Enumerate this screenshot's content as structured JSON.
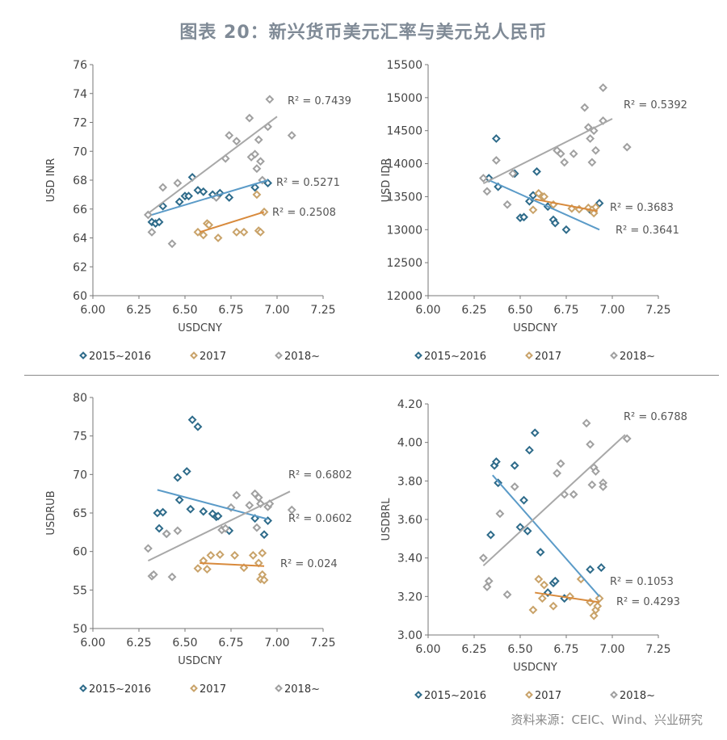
{
  "title": "图表 20：新兴货币美元汇率与美元兑人民币",
  "source": "资料来源：CEIC、Wind、兴业研究",
  "colors": {
    "s2015": "#2e6b8a",
    "s2017": "#c9a36a",
    "s2018": "#a0a0a0",
    "fit2015": "#5b9bc8",
    "fit2017": "#d88a3c",
    "fit2018": "#a8a8a8",
    "axis": "#777777"
  },
  "chart_data": [
    {
      "type": "scatter",
      "xlabel": "USDCNY",
      "ylabel": "USD INR",
      "xlim": [
        6.0,
        7.25
      ],
      "ylim": [
        60,
        76
      ],
      "xticks": [
        "6.00",
        "6.25",
        "6.50",
        "6.75",
        "7.00",
        "7.25"
      ],
      "yticks": [
        "60",
        "62",
        "64",
        "66",
        "68",
        "70",
        "72",
        "74",
        "76"
      ],
      "series": [
        {
          "name": "2015~2016",
          "points": [
            [
              6.32,
              65.1
            ],
            [
              6.34,
              65.0
            ],
            [
              6.36,
              65.1
            ],
            [
              6.38,
              66.2
            ],
            [
              6.47,
              66.5
            ],
            [
              6.5,
              66.9
            ],
            [
              6.52,
              66.9
            ],
            [
              6.54,
              68.2
            ],
            [
              6.57,
              67.3
            ],
            [
              6.6,
              67.2
            ],
            [
              6.65,
              67.0
            ],
            [
              6.69,
              67.1
            ],
            [
              6.74,
              66.8
            ],
            [
              6.88,
              67.5
            ],
            [
              6.95,
              67.8
            ]
          ],
          "fit": [
            [
              6.32,
              65.6
            ],
            [
              6.95,
              68.0
            ]
          ],
          "r2": "R² = 0.5271"
        },
        {
          "name": "2017",
          "points": [
            [
              6.57,
              64.4
            ],
            [
              6.6,
              64.2
            ],
            [
              6.62,
              65.0
            ],
            [
              6.63,
              64.9
            ],
            [
              6.68,
              64.0
            ],
            [
              6.78,
              64.4
            ],
            [
              6.82,
              64.4
            ],
            [
              6.9,
              64.5
            ],
            [
              6.91,
              64.4
            ],
            [
              6.93,
              65.8
            ],
            [
              6.89,
              67.0
            ]
          ],
          "fit": [
            [
              6.58,
              64.4
            ],
            [
              6.93,
              65.8
            ]
          ],
          "r2": "R² = 0.2508"
        },
        {
          "name": "2018~",
          "points": [
            [
              6.3,
              65.6
            ],
            [
              6.32,
              64.4
            ],
            [
              6.38,
              67.5
            ],
            [
              6.43,
              63.6
            ],
            [
              6.46,
              67.8
            ],
            [
              6.67,
              66.8
            ],
            [
              6.72,
              69.5
            ],
            [
              6.74,
              71.1
            ],
            [
              6.78,
              70.7
            ],
            [
              6.85,
              72.3
            ],
            [
              6.86,
              69.6
            ],
            [
              6.88,
              69.8
            ],
            [
              6.89,
              68.8
            ],
            [
              6.9,
              70.8
            ],
            [
              6.91,
              69.3
            ],
            [
              6.92,
              68.0
            ],
            [
              6.95,
              71.7
            ],
            [
              6.96,
              73.6
            ],
            [
              7.08,
              71.1
            ]
          ],
          "fit": [
            [
              6.3,
              65.7
            ],
            [
              7.0,
              72.4
            ]
          ],
          "r2": "R² = 0.7439"
        }
      ],
      "legend": [
        "2015~2016",
        "2017",
        "2018~"
      ]
    },
    {
      "type": "scatter",
      "xlabel": "USDCNY",
      "ylabel": "USD IDR",
      "xlim": [
        6.0,
        7.25
      ],
      "ylim": [
        12000,
        15500
      ],
      "xticks": [
        "6.00",
        "6.25",
        "6.50",
        "6.75",
        "7.00",
        "7.25"
      ],
      "yticks": [
        "12000",
        "12500",
        "13000",
        "13500",
        "14000",
        "14500",
        "15000",
        "15500"
      ],
      "series": [
        {
          "name": "2015~2016",
          "points": [
            [
              6.33,
              13780
            ],
            [
              6.37,
              14380
            ],
            [
              6.38,
              13650
            ],
            [
              6.47,
              13850
            ],
            [
              6.5,
              13180
            ],
            [
              6.52,
              13190
            ],
            [
              6.55,
              13430
            ],
            [
              6.57,
              13520
            ],
            [
              6.59,
              13880
            ],
            [
              6.65,
              13350
            ],
            [
              6.68,
              13150
            ],
            [
              6.69,
              13100
            ],
            [
              6.75,
              13000
            ],
            [
              6.88,
              13300
            ],
            [
              6.93,
              13400
            ]
          ],
          "fit": [
            [
              6.33,
              13750
            ],
            [
              6.93,
              13000
            ]
          ],
          "r2": "R² = 0.3641"
        },
        {
          "name": "2017",
          "points": [
            [
              6.57,
              13300
            ],
            [
              6.6,
              13550
            ],
            [
              6.62,
              13500
            ],
            [
              6.63,
              13500
            ],
            [
              6.68,
              13380
            ],
            [
              6.78,
              13320
            ],
            [
              6.82,
              13310
            ],
            [
              6.87,
              13330
            ],
            [
              6.89,
              13300
            ],
            [
              6.9,
              13250
            ],
            [
              6.91,
              13340
            ]
          ],
          "fit": [
            [
              6.58,
              13460
            ],
            [
              6.92,
              13280
            ]
          ],
          "r2": "R² = 0.3683"
        },
        {
          "name": "2018~",
          "points": [
            [
              6.3,
              13780
            ],
            [
              6.32,
              13580
            ],
            [
              6.37,
              14050
            ],
            [
              6.43,
              13380
            ],
            [
              6.46,
              13850
            ],
            [
              6.7,
              14200
            ],
            [
              6.72,
              14150
            ],
            [
              6.74,
              14020
            ],
            [
              6.79,
              14150
            ],
            [
              6.85,
              14850
            ],
            [
              6.87,
              14550
            ],
            [
              6.88,
              14380
            ],
            [
              6.89,
              14020
            ],
            [
              6.9,
              14500
            ],
            [
              6.91,
              14200
            ],
            [
              6.95,
              14650
            ],
            [
              6.95,
              15150
            ],
            [
              7.08,
              14250
            ]
          ],
          "fit": [
            [
              6.3,
              13700
            ],
            [
              7.0,
              14680
            ]
          ],
          "r2": "R² = 0.5392"
        }
      ],
      "legend": [
        "2015~2016",
        "2017",
        "2018~"
      ]
    },
    {
      "type": "scatter",
      "xlabel": "USDCNY",
      "ylabel": "USDRUB",
      "xlim": [
        6.0,
        7.25
      ],
      "ylim": [
        50,
        80
      ],
      "xticks": [
        "6.00",
        "6.25",
        "6.50",
        "6.75",
        "7.00",
        "7.25"
      ],
      "yticks": [
        "50",
        "55",
        "60",
        "65",
        "70",
        "75",
        "80"
      ],
      "series": [
        {
          "name": "2015~2016",
          "points": [
            [
              6.35,
              65.0
            ],
            [
              6.36,
              63.0
            ],
            [
              6.38,
              65.1
            ],
            [
              6.4,
              62.3
            ],
            [
              6.46,
              69.6
            ],
            [
              6.47,
              66.7
            ],
            [
              6.51,
              70.4
            ],
            [
              6.53,
              65.5
            ],
            [
              6.54,
              77.1
            ],
            [
              6.57,
              76.2
            ],
            [
              6.6,
              65.2
            ],
            [
              6.65,
              64.9
            ],
            [
              6.67,
              64.5
            ],
            [
              6.68,
              64.6
            ],
            [
              6.74,
              62.7
            ],
            [
              6.88,
              64.3
            ],
            [
              6.93,
              62.2
            ],
            [
              6.95,
              64.0
            ]
          ],
          "fit": [
            [
              6.35,
              68.0
            ],
            [
              6.95,
              64.2
            ]
          ],
          "r2": "R² = 0.0602"
        },
        {
          "name": "2017",
          "points": [
            [
              6.57,
              57.8
            ],
            [
              6.6,
              58.8
            ],
            [
              6.62,
              57.7
            ],
            [
              6.64,
              59.5
            ],
            [
              6.69,
              59.6
            ],
            [
              6.77,
              59.5
            ],
            [
              6.82,
              57.9
            ],
            [
              6.87,
              59.5
            ],
            [
              6.9,
              58.5
            ],
            [
              6.91,
              56.4
            ],
            [
              6.92,
              57.0
            ],
            [
              6.93,
              56.3
            ],
            [
              6.92,
              59.8
            ]
          ],
          "fit": [
            [
              6.58,
              58.5
            ],
            [
              6.93,
              58.1
            ]
          ],
          "r2": "R² = 0.024"
        },
        {
          "name": "2018~",
          "points": [
            [
              6.3,
              60.4
            ],
            [
              6.32,
              56.8
            ],
            [
              6.33,
              57.0
            ],
            [
              6.4,
              62.3
            ],
            [
              6.43,
              56.7
            ],
            [
              6.46,
              62.7
            ],
            [
              6.7,
              62.8
            ],
            [
              6.72,
              63.0
            ],
            [
              6.75,
              65.7
            ],
            [
              6.78,
              67.3
            ],
            [
              6.85,
              66.0
            ],
            [
              6.88,
              67.5
            ],
            [
              6.89,
              63.1
            ],
            [
              6.9,
              67.0
            ],
            [
              6.91,
              66.2
            ],
            [
              6.95,
              65.8
            ],
            [
              6.96,
              66.2
            ],
            [
              7.08,
              65.4
            ]
          ],
          "fit": [
            [
              6.3,
              58.8
            ],
            [
              7.07,
              67.8
            ]
          ],
          "r2": "R² = 0.6802"
        }
      ],
      "legend": [
        "2015~2016",
        "2017",
        "2018~"
      ]
    },
    {
      "type": "scatter",
      "xlabel": "USDCNY",
      "ylabel": "USDBRL",
      "xlim": [
        6.0,
        7.25
      ],
      "ylim": [
        3.0,
        4.2
      ],
      "xticks": [
        "6.00",
        "6.25",
        "6.50",
        "6.75",
        "7.00",
        "7.25"
      ],
      "yticks": [
        "3.00",
        "3.20",
        "3.40",
        "3.60",
        "3.80",
        "4.00",
        "4.20"
      ],
      "series": [
        {
          "name": "2015~2016",
          "points": [
            [
              6.34,
              3.52
            ],
            [
              6.36,
              3.88
            ],
            [
              6.37,
              3.9
            ],
            [
              6.38,
              3.79
            ],
            [
              6.47,
              3.88
            ],
            [
              6.5,
              3.56
            ],
            [
              6.52,
              3.7
            ],
            [
              6.54,
              3.54
            ],
            [
              6.55,
              3.96
            ],
            [
              6.58,
              4.05
            ],
            [
              6.61,
              3.43
            ],
            [
              6.65,
              3.22
            ],
            [
              6.68,
              3.27
            ],
            [
              6.69,
              3.28
            ],
            [
              6.74,
              3.19
            ],
            [
              6.88,
              3.34
            ],
            [
              6.94,
              3.35
            ]
          ],
          "fit": [
            [
              6.35,
              3.83
            ],
            [
              6.93,
              3.2
            ]
          ],
          "r2": "R² = 0.4293"
        },
        {
          "name": "2017",
          "points": [
            [
              6.57,
              3.13
            ],
            [
              6.6,
              3.29
            ],
            [
              6.62,
              3.19
            ],
            [
              6.63,
              3.26
            ],
            [
              6.68,
              3.15
            ],
            [
              6.77,
              3.2
            ],
            [
              6.83,
              3.29
            ],
            [
              6.88,
              3.17
            ],
            [
              6.9,
              3.1
            ],
            [
              6.91,
              3.13
            ],
            [
              6.92,
              3.15
            ],
            [
              6.93,
              3.19
            ]
          ],
          "fit": [
            [
              6.58,
              3.22
            ],
            [
              6.93,
              3.17
            ]
          ],
          "r2": "R² = 0.1053"
        },
        {
          "name": "2018~",
          "points": [
            [
              6.3,
              3.4
            ],
            [
              6.32,
              3.25
            ],
            [
              6.33,
              3.28
            ],
            [
              6.39,
              3.63
            ],
            [
              6.43,
              3.21
            ],
            [
              6.47,
              3.77
            ],
            [
              6.7,
              3.84
            ],
            [
              6.72,
              3.89
            ],
            [
              6.74,
              3.73
            ],
            [
              6.79,
              3.73
            ],
            [
              6.86,
              4.1
            ],
            [
              6.88,
              3.99
            ],
            [
              6.89,
              3.78
            ],
            [
              6.9,
              3.87
            ],
            [
              6.91,
              3.85
            ],
            [
              6.95,
              3.79
            ],
            [
              6.95,
              3.77
            ],
            [
              7.08,
              4.02
            ]
          ],
          "fit": [
            [
              6.3,
              3.36
            ],
            [
              7.07,
              4.04
            ]
          ],
          "r2": "R² = 0.6788"
        }
      ],
      "legend": [
        "2015~2016",
        "2017",
        "2018~"
      ]
    }
  ]
}
